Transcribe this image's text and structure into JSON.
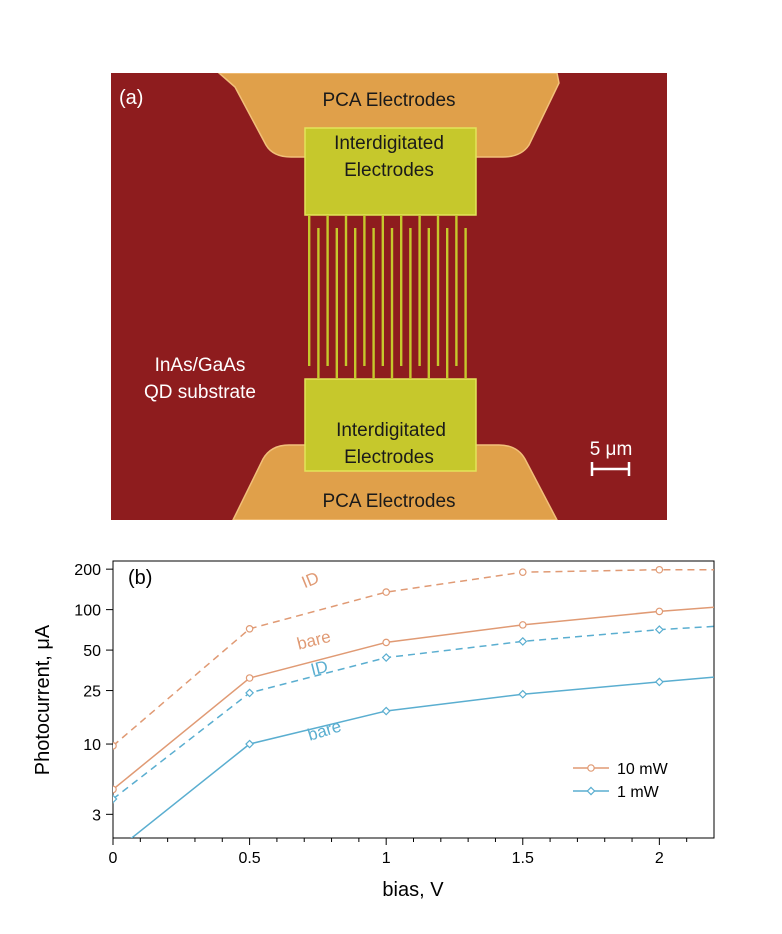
{
  "panel_a": {
    "label": "(a)",
    "top_electrode_label": "PCA Electrodes",
    "bottom_electrode_label": "PCA Electrodes",
    "top_idt_label_1": "Interdigitated",
    "top_idt_label_2": "Electrodes",
    "bottom_idt_label_1": "Interdigitated",
    "bottom_idt_label_2": "Electrodes",
    "substrate_label_1": "InAs/GaAs",
    "substrate_label_2": "QD substrate",
    "scale_bar_label": "5 μm",
    "colors": {
      "substrate": "#8e1c1e",
      "pca": "#e0a04a",
      "idt": "#c6c82c"
    }
  },
  "chart_data": {
    "type": "line",
    "panel_label": "(b)",
    "xlabel": "bias, V",
    "ylabel": "Photocurrent, μA",
    "xlim": [
      0,
      2.2
    ],
    "ylim": [
      2,
      230
    ],
    "y_scale": "log",
    "x_ticks": [
      0,
      0.5,
      1,
      1.5,
      2
    ],
    "x_tick_labels": [
      "0",
      "0.5",
      "1",
      "1.5",
      "2"
    ],
    "x_minor_ticks": [
      0.1,
      0.2,
      0.3,
      0.4,
      0.6,
      0.7,
      0.8,
      0.9,
      1.1,
      1.2,
      1.3,
      1.4,
      1.6,
      1.7,
      1.8,
      1.9,
      2.1
    ],
    "y_ticks": [
      3,
      10,
      25,
      50,
      100,
      200
    ],
    "y_tick_labels": [
      "3",
      "10",
      "25",
      "50",
      "100",
      "200"
    ],
    "grid": false,
    "legend_position": "lower-right",
    "legend": [
      {
        "label": "10 mW",
        "color": "#e09a74",
        "marker": "circle"
      },
      {
        "label": "1 mW",
        "color": "#5aaed0",
        "marker": "diamond"
      }
    ],
    "series": [
      {
        "name": "ID",
        "power": "10 mW",
        "color": "#e09a74",
        "dash": true,
        "marker": "circle",
        "x": [
          0,
          0.5,
          1,
          1.5,
          2,
          2.2
        ],
        "y": [
          9.7,
          72,
          135,
          190,
          198,
          198
        ]
      },
      {
        "name": "bare",
        "power": "10 mW",
        "color": "#e09a74",
        "dash": false,
        "marker": "circle",
        "x": [
          0,
          0.5,
          1,
          1.5,
          2,
          2.2
        ],
        "y": [
          4.6,
          31,
          57,
          77,
          97,
          104
        ]
      },
      {
        "name": "ID",
        "power": "1 mW",
        "color": "#5aaed0",
        "dash": true,
        "marker": "diamond",
        "x": [
          0,
          0.5,
          1,
          1.5,
          2,
          2.2
        ],
        "y": [
          3.9,
          24,
          44,
          58,
          71,
          75
        ]
      },
      {
        "name": "bare",
        "power": "1 mW",
        "color": "#5aaed0",
        "dash": false,
        "marker": "diamond",
        "x": [
          0,
          0.5,
          1,
          1.5,
          2,
          2.2
        ],
        "y": [
          1.55,
          10,
          17.6,
          23.5,
          29,
          31.5
        ]
      }
    ]
  }
}
